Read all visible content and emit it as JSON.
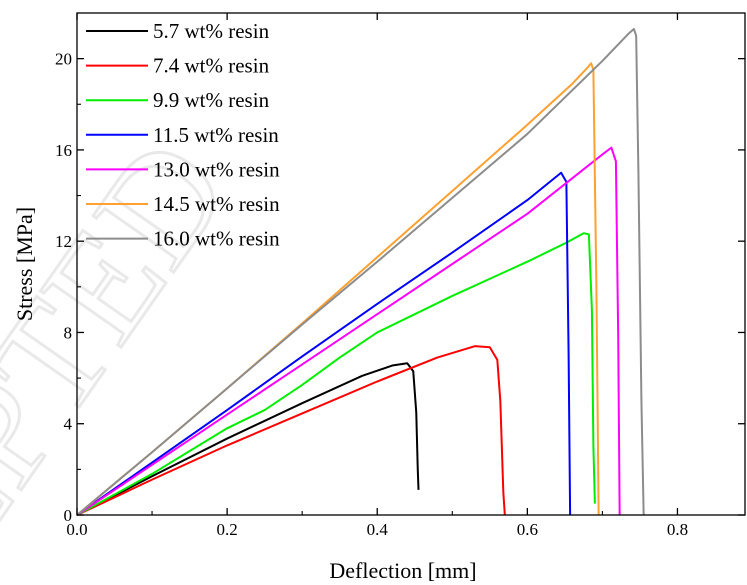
{
  "chart_data": {
    "type": "line",
    "xlabel": "Deflection [mm]",
    "ylabel": "Stress [MPa]",
    "xlim": [
      0,
      0.89
    ],
    "ylim": [
      0,
      22
    ],
    "xticks": [
      0.0,
      0.2,
      0.4,
      0.6,
      0.8
    ],
    "xtick_labels": [
      "0.0",
      "0.2",
      "0.4",
      "0.6",
      "0.8"
    ],
    "yticks": [
      0,
      4,
      8,
      12,
      16,
      20
    ],
    "ytick_labels": [
      "0",
      "4",
      "8",
      "12",
      "16",
      "20"
    ],
    "grid": false,
    "legend_position": "top-left",
    "series": [
      {
        "name": "5.7 wt% resin",
        "color": "#000000",
        "x": [
          0,
          0.1,
          0.2,
          0.3,
          0.38,
          0.42,
          0.44,
          0.448,
          0.452,
          0.454,
          0.455
        ],
        "y": [
          0,
          1.7,
          3.35,
          4.9,
          6.1,
          6.55,
          6.65,
          6.3,
          4.5,
          2.0,
          1.1
        ]
      },
      {
        "name": "7.4 wt% resin",
        "color": "#ff0000",
        "x": [
          0,
          0.1,
          0.2,
          0.3,
          0.4,
          0.48,
          0.53,
          0.55,
          0.56,
          0.564,
          0.566,
          0.568,
          0.57
        ],
        "y": [
          0,
          1.55,
          3.05,
          4.45,
          5.85,
          6.9,
          7.4,
          7.35,
          6.8,
          5.0,
          3.0,
          1.0,
          0.0
        ]
      },
      {
        "name": "9.9 wt% resin",
        "color": "#00ee00",
        "x": [
          0,
          0.1,
          0.2,
          0.25,
          0.3,
          0.35,
          0.4,
          0.5,
          0.6,
          0.65,
          0.675,
          0.682,
          0.686,
          0.688,
          0.69
        ],
        "y": [
          0,
          1.8,
          3.8,
          4.6,
          5.7,
          6.9,
          8.0,
          9.6,
          11.1,
          11.9,
          12.35,
          12.3,
          9.0,
          3.0,
          0.5
        ]
      },
      {
        "name": "11.5 wt% resin",
        "color": "#0000ff",
        "x": [
          0,
          0.1,
          0.2,
          0.3,
          0.4,
          0.5,
          0.6,
          0.645,
          0.652,
          0.655,
          0.657
        ],
        "y": [
          0,
          2.3,
          4.6,
          6.95,
          9.25,
          11.5,
          13.8,
          15.0,
          14.6,
          7.0,
          0.0
        ]
      },
      {
        "name": "13.0 wt% resin",
        "color": "#ff00ff",
        "x": [
          0,
          0.1,
          0.2,
          0.3,
          0.4,
          0.5,
          0.6,
          0.7,
          0.712,
          0.718,
          0.721,
          0.723
        ],
        "y": [
          0,
          2.2,
          4.4,
          6.6,
          8.8,
          11.0,
          13.2,
          15.8,
          16.1,
          15.5,
          8.0,
          0.0
        ]
      },
      {
        "name": "14.5 wt% resin",
        "color": "#ffa030",
        "x": [
          0,
          0.1,
          0.2,
          0.3,
          0.4,
          0.5,
          0.6,
          0.66,
          0.68,
          0.685,
          0.688,
          0.692,
          0.695
        ],
        "y": [
          0,
          2.75,
          5.55,
          8.4,
          11.3,
          14.2,
          17.1,
          18.9,
          19.6,
          19.8,
          19.5,
          10.0,
          0.0
        ]
      },
      {
        "name": "16.0 wt% resin",
        "color": "#8c8c8c",
        "x": [
          0,
          0.1,
          0.2,
          0.3,
          0.4,
          0.5,
          0.6,
          0.7,
          0.735,
          0.742,
          0.745,
          0.748,
          0.752,
          0.755
        ],
        "y": [
          0,
          2.75,
          5.55,
          8.35,
          11.1,
          13.9,
          16.7,
          19.9,
          21.1,
          21.3,
          21.0,
          15.0,
          5.0,
          0.0
        ]
      }
    ]
  }
}
